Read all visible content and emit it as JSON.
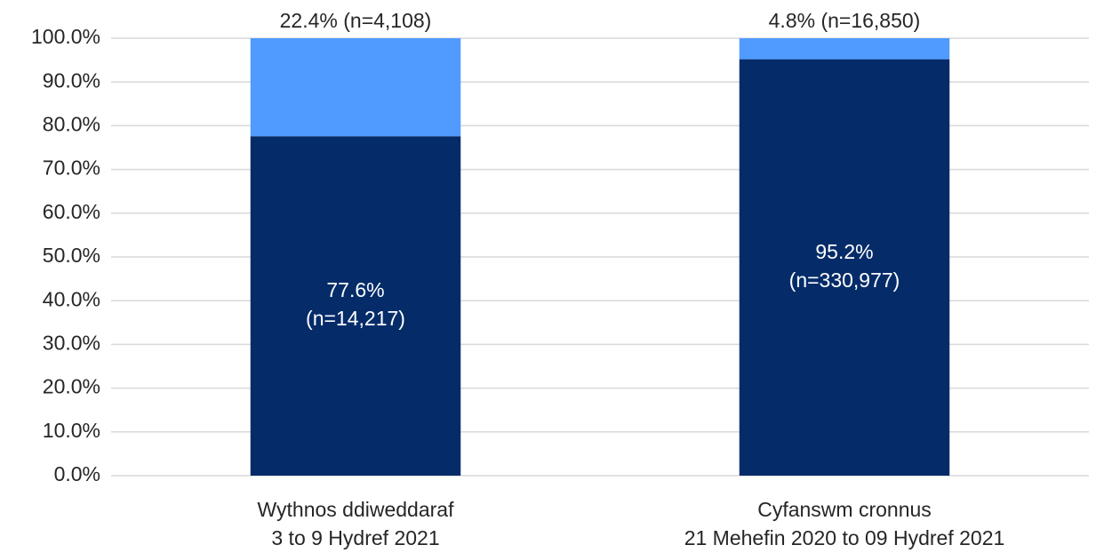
{
  "chart_data": {
    "type": "stacked_bar",
    "categories": [
      "Wythnos ddiweddaraf\n3 to 9 Hydref 2021",
      "Cyfanswm cronnus\n21 Mehefin 2020 to 09 Hydref 2021"
    ],
    "series": [
      {
        "color": "#052c69",
        "values": [
          77.6,
          95.2
        ],
        "value_labels": [
          "77.6%\n(n=14,217)",
          "95.2%\n(n=330,977)"
        ]
      },
      {
        "color": "#4f9bff",
        "values": [
          22.4,
          4.8
        ],
        "value_labels": [
          "22.4% (n=4,108)",
          "4.8% (n=16,850)"
        ]
      }
    ],
    "ylim": [
      0,
      100
    ],
    "yticks": [
      {
        "value": 0,
        "label": "0.0%"
      },
      {
        "value": 10,
        "label": "10.0%"
      },
      {
        "value": 20,
        "label": "20.0%"
      },
      {
        "value": 30,
        "label": "30.0%"
      },
      {
        "value": 40,
        "label": "40.0%"
      },
      {
        "value": 50,
        "label": "50.0%"
      },
      {
        "value": 60,
        "label": "60.0%"
      },
      {
        "value": 70,
        "label": "70.0%"
      },
      {
        "value": 80,
        "label": "80.0%"
      },
      {
        "value": 90,
        "label": "90.0%"
      },
      {
        "value": 100,
        "label": "100.0%"
      }
    ],
    "grid": true
  }
}
